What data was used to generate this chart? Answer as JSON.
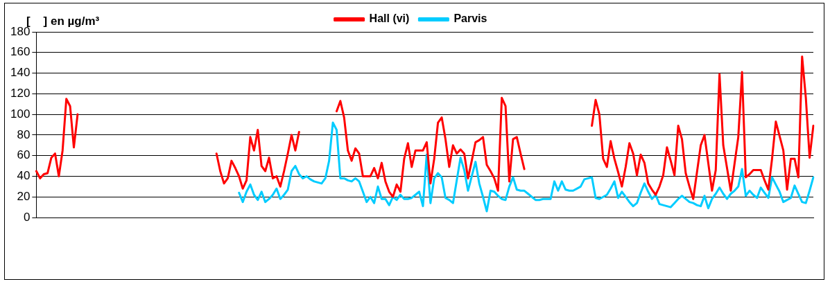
{
  "chart_data": {
    "type": "line",
    "ylabel": "[    ] en µg/m³",
    "categories": [
      null,
      null,
      null,
      null,
      null,
      null,
      null,
      null,
      null,
      null,
      null,
      null,
      null,
      null,
      null,
      null,
      null,
      null,
      null,
      null,
      null,
      null,
      null,
      null,
      null,
      null,
      null,
      null,
      null,
      null,
      null,
      null,
      null,
      null,
      null,
      null,
      null,
      null,
      null,
      null,
      null,
      null,
      null,
      null,
      null,
      null,
      null,
      null,
      null,
      null,
      null,
      null,
      null,
      null,
      null,
      null,
      null,
      null,
      null,
      null,
      null,
      null,
      null,
      null,
      null,
      null,
      null,
      null,
      null,
      null,
      null,
      null,
      null,
      null,
      null,
      null,
      null,
      null,
      null,
      null,
      null,
      null,
      null,
      null,
      null,
      null,
      null,
      null,
      null,
      null,
      null,
      null,
      null,
      null,
      null,
      null,
      null,
      null,
      null,
      null,
      null,
      null,
      null,
      null,
      null,
      null,
      null,
      null,
      null,
      null,
      null,
      null,
      null,
      null,
      null,
      null,
      null,
      null,
      null,
      null,
      null,
      null,
      null,
      null,
      null,
      null,
      null,
      null,
      null,
      null,
      null,
      null,
      null,
      null,
      null,
      null,
      null,
      null,
      null,
      null,
      null,
      null,
      null,
      null,
      null,
      null,
      null,
      null,
      null,
      null,
      null,
      null,
      null,
      null,
      null,
      null,
      null,
      null,
      null,
      null,
      null,
      null,
      null,
      null,
      null,
      null,
      null,
      null,
      null,
      null,
      null,
      null,
      null,
      null,
      null,
      null,
      null,
      null,
      null,
      null,
      null,
      null,
      null,
      null,
      null,
      null,
      null,
      null,
      null,
      null,
      null,
      null,
      null,
      null,
      null,
      null,
      null,
      null,
      null,
      null,
      null,
      null,
      null,
      null,
      null,
      null,
      null,
      null
    ],
    "ylim": [
      0,
      180
    ],
    "yticks": [
      0,
      20,
      40,
      60,
      80,
      100,
      120,
      140,
      160,
      180
    ],
    "grid": "y",
    "legend": "top",
    "marker": "none",
    "line_style": "solid",
    "series": [
      {
        "name": "Hall (vi)",
        "color": "#ff0000",
        "values": [
          45,
          38,
          42,
          43,
          58,
          62,
          40,
          65,
          115,
          108,
          68,
          100,
          null,
          null,
          null,
          null,
          null,
          null,
          null,
          null,
          null,
          null,
          null,
          null,
          null,
          null,
          null,
          null,
          null,
          null,
          null,
          null,
          null,
          null,
          null,
          null,
          null,
          null,
          null,
          null,
          null,
          null,
          null,
          null,
          null,
          null,
          null,
          null,
          null,
          null,
          null,
          null,
          null,
          null,
          null,
          null,
          null,
          null,
          null,
          null,
          null,
          null,
          null,
          null,
          null,
          null,
          null,
          null,
          null,
          null,
          null,
          null,
          null,
          null,
          null,
          null,
          null,
          null,
          null,
          null,
          null,
          null,
          null,
          null,
          null,
          null,
          null,
          null,
          null,
          null,
          null,
          null,
          null,
          null,
          null,
          null,
          null,
          null,
          null,
          null,
          null,
          null,
          null,
          null,
          null,
          null,
          null,
          null,
          null,
          null,
          null,
          null,
          null,
          null,
          null,
          null,
          null,
          null,
          null,
          null,
          null,
          null,
          null,
          null,
          null,
          null,
          null,
          null,
          null,
          null,
          null,
          null,
          null,
          null,
          null,
          null,
          null,
          null,
          null,
          null,
          null,
          null,
          null,
          null,
          null,
          null,
          null,
          null,
          null,
          null,
          null,
          null,
          null,
          null,
          null,
          null,
          null,
          null,
          null,
          null,
          null,
          null,
          null,
          null,
          null,
          null,
          null,
          null,
          null,
          null,
          null,
          null,
          null,
          null,
          null,
          null,
          null,
          null,
          null,
          null,
          null,
          null,
          null,
          null,
          null,
          null,
          null,
          null,
          null,
          null,
          null,
          null,
          null,
          null,
          null,
          null,
          null,
          null,
          null,
          null,
          null,
          null,
          null,
          null,
          null,
          null,
          null,
          null
        ]
      },
      {
        "color": "#ff0000",
        "values": [
          null,
          null,
          null,
          null,
          null,
          null,
          null,
          null,
          null,
          null,
          null,
          null,
          null,
          null,
          null,
          null,
          null,
          null,
          null,
          null,
          null,
          null,
          null,
          null,
          null,
          null,
          null,
          null,
          null,
          null,
          null,
          null,
          null,
          null,
          null,
          null,
          null,
          null,
          null,
          null,
          null,
          null,
          null,
          null,
          null,
          null,
          null,
          null,
          62,
          45,
          33,
          38,
          55,
          48,
          40,
          28,
          36,
          78,
          65,
          85,
          50,
          45,
          58,
          38,
          40,
          30,
          45,
          62,
          80,
          65,
          83,
          null,
          null,
          null,
          null,
          null,
          null,
          null,
          null,
          null,
          null,
          null,
          null,
          null,
          null,
          null,
          null,
          null,
          null,
          null,
          null,
          null,
          null,
          null,
          null,
          null,
          null,
          null,
          null,
          null,
          null,
          null,
          null,
          null,
          null,
          null,
          null,
          null,
          null,
          null,
          null,
          null,
          null,
          null,
          null,
          null,
          null,
          null,
          null,
          null,
          null,
          null,
          null,
          null,
          null,
          null,
          null,
          null,
          null,
          null,
          null,
          null,
          null,
          null,
          null,
          null,
          null,
          null,
          null,
          null,
          null,
          null,
          null,
          null,
          null,
          null,
          null,
          null,
          null,
          null,
          null,
          null,
          null,
          null,
          null,
          null,
          null,
          null,
          null,
          null,
          null,
          null,
          null,
          null,
          null,
          null,
          null,
          null,
          null,
          null,
          null,
          null,
          null,
          null,
          null,
          null,
          null,
          null,
          null,
          null,
          null,
          null,
          null,
          null,
          null,
          null,
          null,
          null,
          null,
          null,
          null,
          null,
          null,
          null,
          null,
          null,
          null,
          null,
          null,
          null,
          null,
          null,
          null,
          null,
          null,
          null,
          null,
          null
        ]
      },
      {
        "color": "#ff0000",
        "values": [
          null,
          null,
          null,
          null,
          null,
          null,
          null,
          null,
          null,
          null,
          null,
          null,
          null,
          null,
          null,
          null,
          null,
          null,
          null,
          null,
          null,
          null,
          null,
          null,
          null,
          null,
          null,
          null,
          null,
          null,
          null,
          null,
          null,
          null,
          null,
          null,
          null,
          null,
          null,
          null,
          null,
          null,
          null,
          null,
          null,
          null,
          null,
          null,
          null,
          null,
          null,
          null,
          null,
          null,
          null,
          null,
          null,
          null,
          null,
          null,
          null,
          null,
          null,
          null,
          null,
          null,
          null,
          null,
          null,
          null,
          null,
          null,
          null,
          null,
          null,
          null,
          null,
          null,
          null,
          null,
          103,
          113,
          97,
          65,
          55,
          67,
          62,
          40,
          40,
          40,
          48,
          38,
          53,
          35,
          25,
          20,
          32,
          25,
          57,
          72,
          49,
          65,
          65,
          65,
          73,
          33,
          57,
          92,
          97,
          76,
          49,
          70,
          62,
          66,
          62,
          38,
          55,
          73,
          75,
          78,
          51,
          45,
          38,
          26,
          116,
          108,
          35,
          76,
          78,
          62,
          47,
          null,
          null,
          null,
          null,
          null,
          null,
          null,
          null,
          null,
          null,
          null,
          null,
          null,
          null,
          null,
          null,
          null,
          null,
          null,
          null,
          null,
          null,
          null,
          null,
          null,
          null,
          null,
          null,
          null,
          null,
          null,
          null,
          null,
          null,
          null,
          null,
          null,
          null,
          null,
          null,
          null,
          null,
          null,
          null,
          null,
          null,
          null,
          null,
          null,
          null,
          null,
          null,
          null,
          null,
          null,
          null,
          null,
          null,
          null,
          null,
          null,
          null,
          null,
          null,
          null,
          null,
          null,
          null,
          null,
          null,
          null,
          null,
          null,
          null,
          null,
          null,
          null
        ]
      },
      {
        "color": "#ff0000",
        "values": [
          null,
          null,
          null,
          null,
          null,
          null,
          null,
          null,
          null,
          null,
          null,
          null,
          null,
          null,
          null,
          null,
          null,
          null,
          null,
          null,
          null,
          null,
          null,
          null,
          null,
          null,
          null,
          null,
          null,
          null,
          null,
          null,
          null,
          null,
          null,
          null,
          null,
          null,
          null,
          null,
          null,
          null,
          null,
          null,
          null,
          null,
          null,
          null,
          null,
          null,
          null,
          null,
          null,
          null,
          null,
          null,
          null,
          null,
          null,
          null,
          null,
          null,
          null,
          null,
          null,
          null,
          null,
          null,
          null,
          null,
          null,
          null,
          null,
          null,
          null,
          null,
          null,
          null,
          null,
          null,
          null,
          null,
          null,
          null,
          null,
          null,
          null,
          null,
          null,
          null,
          null,
          null,
          null,
          null,
          null,
          null,
          null,
          null,
          null,
          null,
          null,
          null,
          null,
          null,
          null,
          null,
          null,
          null,
          null,
          null,
          null,
          null,
          null,
          null,
          null,
          null,
          null,
          null,
          null,
          null,
          null,
          null,
          null,
          null,
          null,
          null,
          null,
          null,
          null,
          null,
          null,
          null,
          null,
          null,
          null,
          null,
          null,
          null,
          null,
          null,
          null,
          null,
          null,
          null,
          null,
          null,
          null,
          null,
          89,
          114,
          100,
          57,
          49,
          74,
          57,
          44,
          30,
          49,
          72,
          62,
          41,
          61,
          53,
          33,
          27,
          22,
          30,
          41,
          68,
          55,
          41,
          89,
          76,
          43,
          30,
          18,
          44,
          70,
          80,
          53,
          26,
          46,
          139,
          70,
          48,
          26,
          52,
          78,
          141,
          39,
          42,
          46,
          46,
          46,
          36,
          27,
          57,
          93,
          79,
          65,
          27,
          57,
          57,
          39,
          156,
          116,
          58,
          89
        ]
      },
      {
        "name": "Parvis",
        "color": "#00ccff",
        "values": [
          null,
          null,
          null,
          null,
          null,
          null,
          null,
          null,
          null,
          null,
          null,
          null,
          null,
          null,
          null,
          null,
          null,
          null,
          null,
          null,
          null,
          null,
          null,
          null,
          null,
          null,
          null,
          null,
          null,
          null,
          null,
          null,
          null,
          null,
          null,
          null,
          null,
          null,
          null,
          null,
          null,
          null,
          null,
          null,
          null,
          null,
          null,
          null,
          null,
          null,
          null,
          null,
          null,
          null,
          24,
          15,
          25,
          32,
          22,
          17,
          25,
          15,
          18,
          22,
          28,
          18,
          22,
          27,
          45,
          50,
          42,
          38,
          40,
          37,
          35,
          34,
          33,
          38,
          55,
          92,
          85,
          38,
          38,
          36,
          35,
          38,
          35,
          25,
          15,
          20,
          14,
          30,
          18,
          18,
          12,
          20,
          17,
          22,
          18,
          18,
          19,
          22,
          25,
          11,
          61,
          14,
          38,
          43,
          39,
          19,
          17,
          14,
          36,
          58,
          46,
          26,
          40,
          54,
          33,
          20,
          6,
          26,
          25,
          21,
          18,
          17,
          30,
          39,
          27,
          26,
          26,
          23,
          20,
          17,
          17,
          18,
          18,
          18,
          35,
          26,
          35,
          27,
          26,
          26,
          28,
          30,
          37,
          38,
          39,
          19,
          18,
          20,
          22,
          28,
          35,
          19,
          25,
          20,
          15,
          11,
          14,
          24,
          33,
          25,
          18,
          22,
          13,
          12,
          11,
          10,
          14,
          18,
          21,
          18,
          15,
          14,
          12,
          11,
          21,
          9,
          18,
          23,
          29,
          23,
          18,
          23,
          26,
          30,
          47,
          21,
          26,
          22,
          19,
          29,
          24,
          19,
          39,
          32,
          25,
          15,
          17,
          19,
          31,
          23,
          15,
          14,
          26,
          39
        ]
      }
    ]
  }
}
